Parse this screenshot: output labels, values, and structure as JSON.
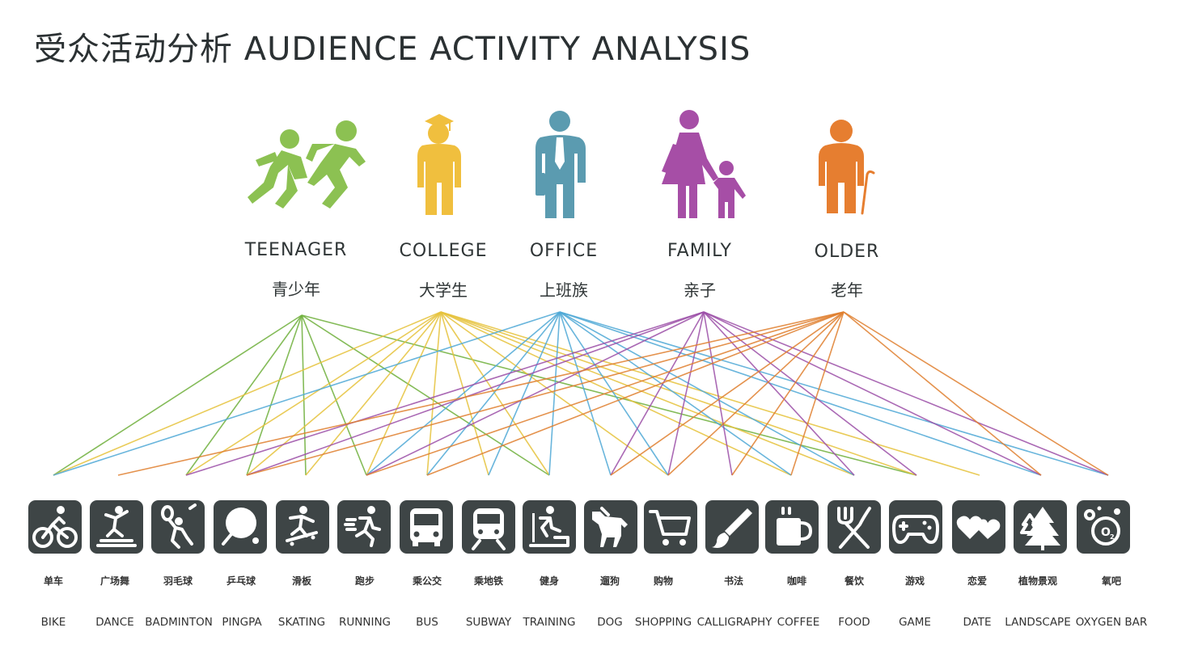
{
  "title": "受众活动分析 AUDIENCE ACTIVITY ANALYSIS",
  "groups": [
    {
      "en": "TEENAGER",
      "cn": "青少年",
      "color": "#6fb03c",
      "icon": "running-people-icon"
    },
    {
      "en": "COLLEGE",
      "cn": "大学生",
      "color": "#e6c23b",
      "icon": "graduate-icon"
    },
    {
      "en": "OFFICE",
      "cn": "上班族",
      "color": "#4fa9d6",
      "icon": "office-worker-icon"
    },
    {
      "en": "FAMILY",
      "cn": "亲子",
      "color": "#9c4fa8",
      "icon": "parent-child-icon"
    },
    {
      "en": "OLDER",
      "cn": "老年",
      "color": "#e07f2f",
      "icon": "elder-with-cane-icon"
    }
  ],
  "activities": [
    {
      "cn": "单车",
      "en": "BIKE",
      "icon": "bike-icon"
    },
    {
      "cn": "广场舞",
      "en": "DANCE",
      "icon": "dance-icon"
    },
    {
      "cn": "羽毛球",
      "en": "BADMINTON",
      "icon": "badminton-icon"
    },
    {
      "cn": "乒乓球",
      "en": "PINGPA",
      "icon": "pingpong-paddle-icon"
    },
    {
      "cn": "滑板",
      "en": "SKATING",
      "icon": "skateboard-icon"
    },
    {
      "cn": "跑步",
      "en": "RUNNING",
      "icon": "runner-icon"
    },
    {
      "cn": "乘公交",
      "en": "BUS",
      "icon": "bus-icon"
    },
    {
      "cn": "乘地铁",
      "en": "SUBWAY",
      "icon": "subway-icon"
    },
    {
      "cn": "健身",
      "en": "TRAINING",
      "icon": "fitness-icon"
    },
    {
      "cn": "遛狗",
      "en": "DOG",
      "icon": "dog-icon"
    },
    {
      "cn": "购物",
      "en": "SHOPPING",
      "icon": "shopping-cart-icon"
    },
    {
      "cn": "书法",
      "en": "CALLIGRAPHY",
      "icon": "brush-icon"
    },
    {
      "cn": "咖啡",
      "en": "COFFEE",
      "icon": "coffee-cup-icon"
    },
    {
      "cn": "餐饮",
      "en": "FOOD",
      "icon": "fork-knife-icon"
    },
    {
      "cn": "游戏",
      "en": "GAME",
      "icon": "gamepad-icon"
    },
    {
      "cn": "恋爱",
      "en": "DATE",
      "icon": "hearts-icon"
    },
    {
      "cn": "植物景观",
      "en": "LANDSCAPE",
      "icon": "trees-icon"
    },
    {
      "cn": "氧吧",
      "en": "OXYGEN BAR",
      "icon": "oxygen-bubbles-icon"
    }
  ],
  "connections": {
    "TEENAGER": [
      "BIKE",
      "BADMINTON",
      "PINGPA",
      "SKATING",
      "RUNNING",
      "TRAINING",
      "GAME"
    ],
    "COLLEGE": [
      "BIKE",
      "BADMINTON",
      "PINGPA",
      "SKATING",
      "RUNNING",
      "BUS",
      "SUBWAY",
      "TRAINING",
      "SHOPPING",
      "COFFEE",
      "FOOD",
      "GAME",
      "DATE"
    ],
    "OFFICE": [
      "BIKE",
      "RUNNING",
      "BUS",
      "SUBWAY",
      "TRAINING",
      "DOG",
      "SHOPPING",
      "COFFEE",
      "FOOD",
      "LANDSCAPE",
      "OXYGEN BAR"
    ],
    "FAMILY": [
      "BADMINTON",
      "PINGPA",
      "RUNNING",
      "DOG",
      "SHOPPING",
      "CALLIGRAPHY",
      "FOOD",
      "GAME",
      "LANDSCAPE",
      "OXYGEN BAR"
    ],
    "OLDER": [
      "DANCE",
      "PINGPA",
      "RUNNING",
      "BUS",
      "DOG",
      "SHOPPING",
      "CALLIGRAPHY",
      "COFFEE",
      "LANDSCAPE",
      "OXYGEN BAR"
    ]
  }
}
